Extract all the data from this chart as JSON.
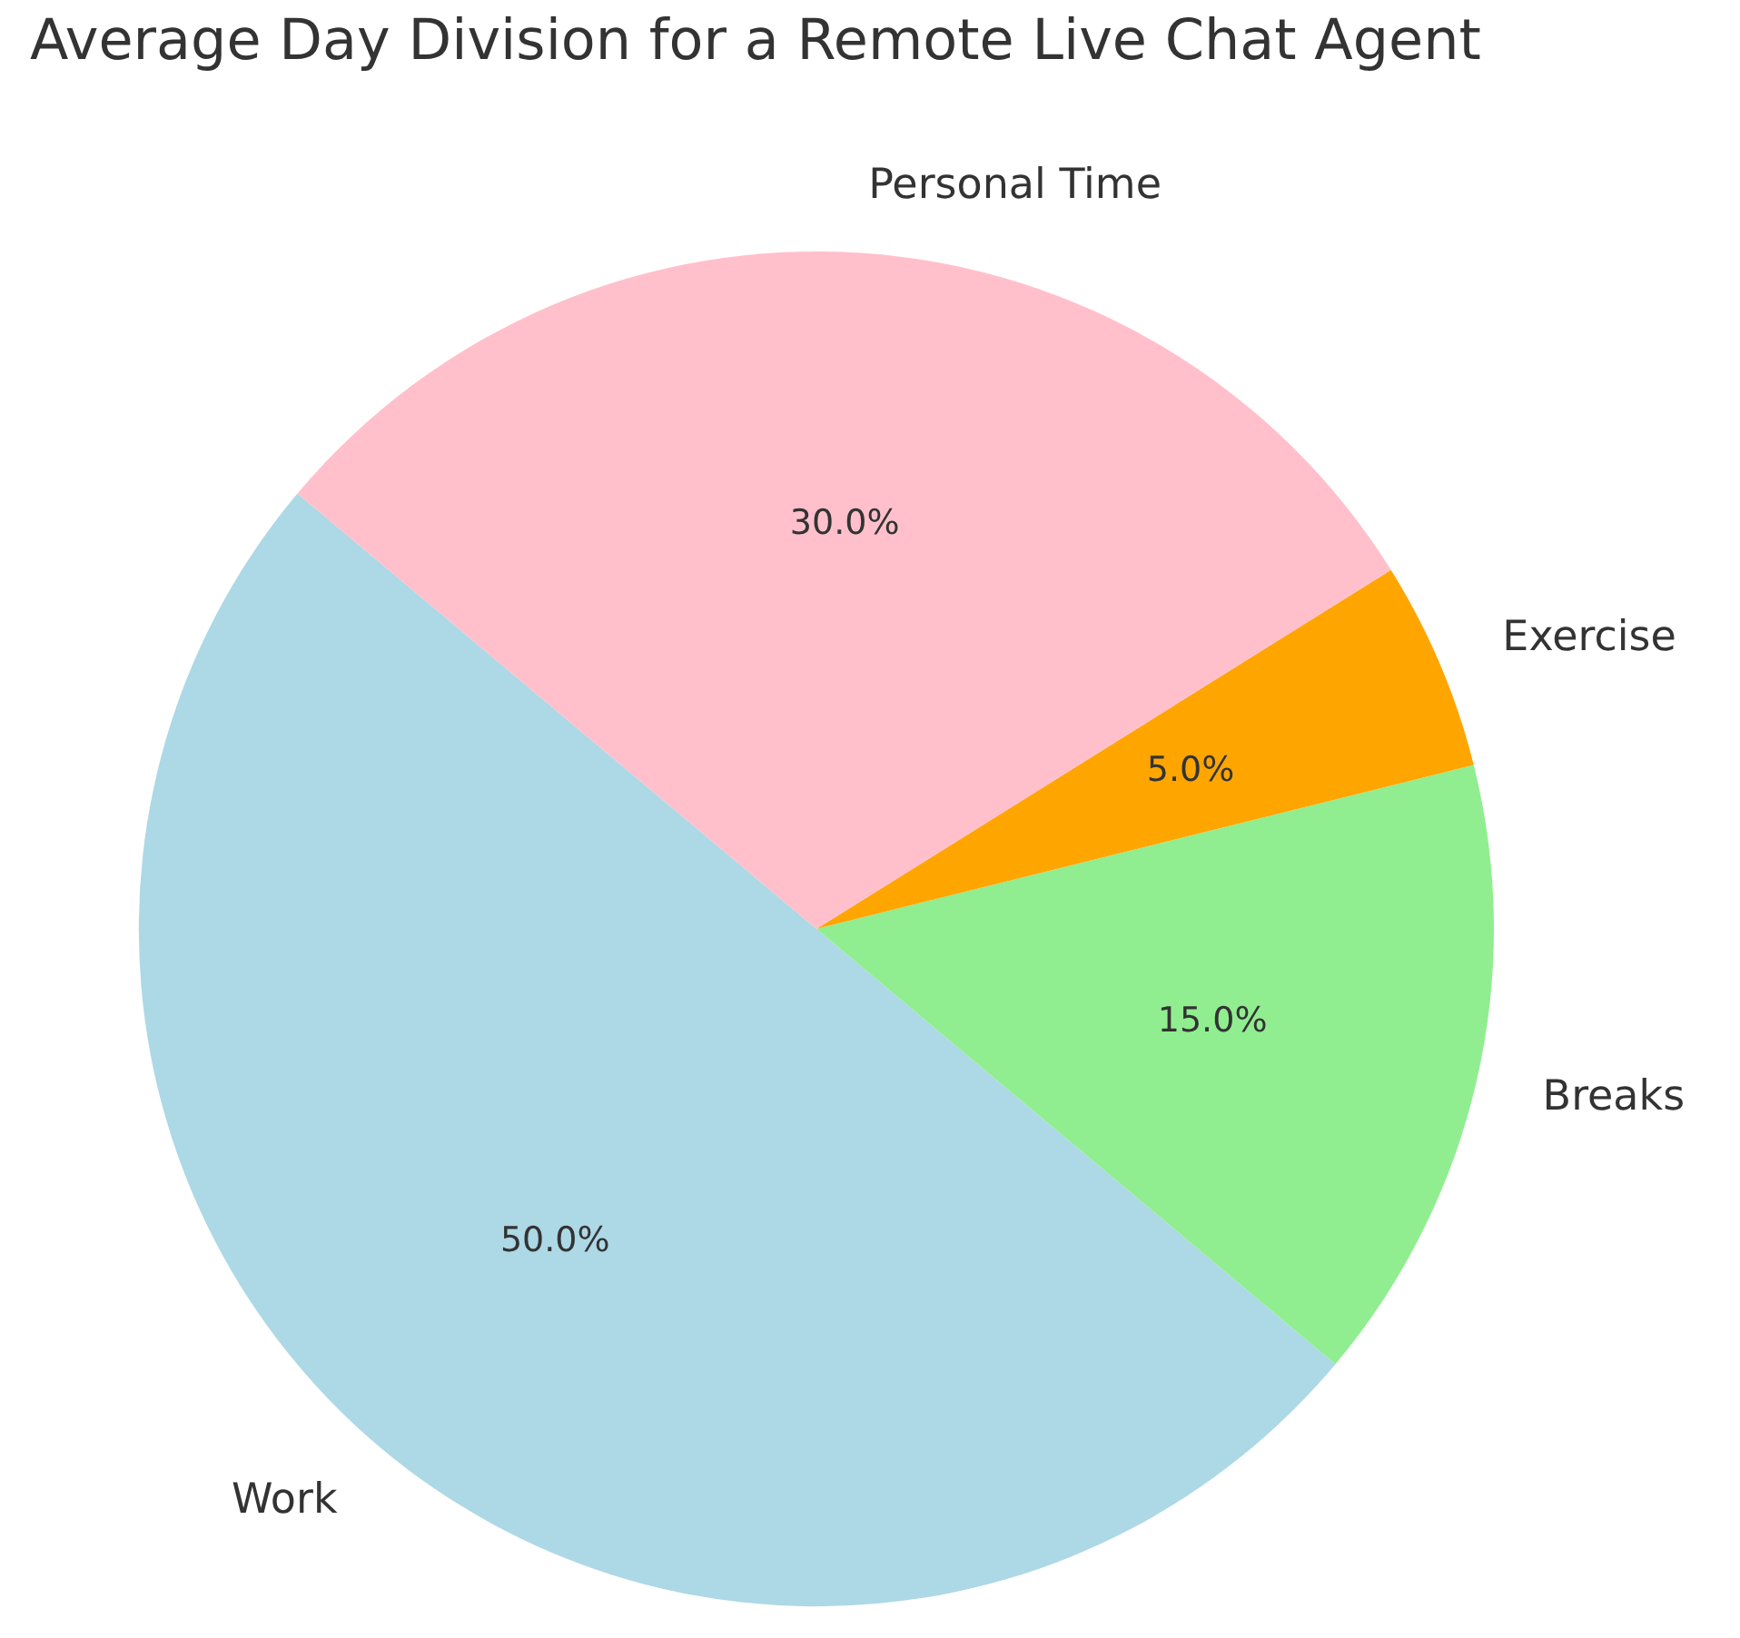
{
  "chart_data": {
    "type": "pie",
    "title": "Average Day Division for a Remote Live Chat Agent",
    "categories": [
      "Work",
      "Breaks",
      "Exercise",
      "Personal Time"
    ],
    "values": [
      50,
      15,
      5,
      30
    ],
    "colors": [
      "#add8e6",
      "#90ee90",
      "#ffa500",
      "#ffc0cb"
    ],
    "value_labels": [
      "50.0%",
      "15.0%",
      "5.0%",
      "30.0%"
    ]
  }
}
